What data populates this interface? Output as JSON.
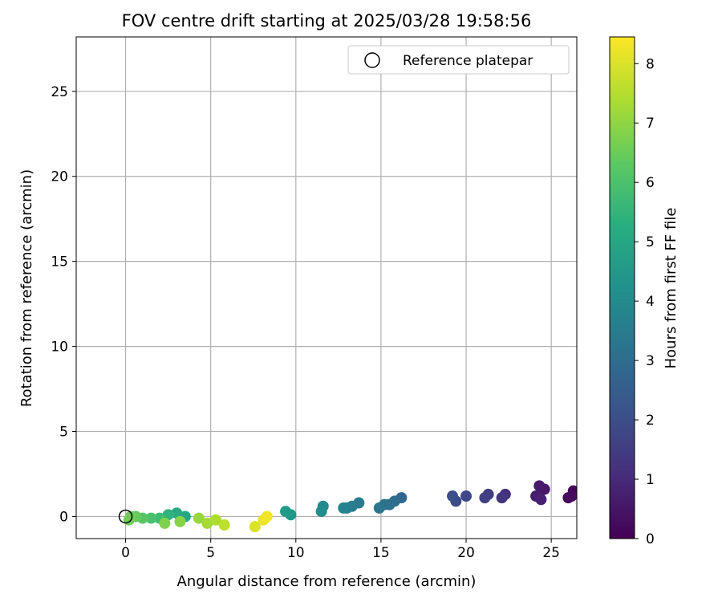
{
  "chart_data": {
    "type": "scatter",
    "title": "FOV centre drift starting at 2025/03/28 19:58:56",
    "xlabel": "Angular distance from reference (arcmin)",
    "ylabel": "Rotation from reference (arcmin)",
    "xlim": [
      -2.9,
      26.5
    ],
    "ylim": [
      -1.3,
      28.2
    ],
    "xticks": [
      0,
      5,
      10,
      15,
      20,
      25
    ],
    "yticks": [
      0,
      5,
      10,
      15,
      20,
      25
    ],
    "grid": true,
    "legend": {
      "position": "upper-right",
      "entries": [
        "Reference platepar"
      ]
    },
    "reference_point": {
      "x": 0,
      "y": 0,
      "label": "Reference platepar"
    },
    "colorbar": {
      "label": "Hours from first FF file",
      "range": [
        0,
        8.45
      ],
      "ticks": [
        0,
        1,
        2,
        3,
        4,
        5,
        6,
        7,
        8
      ],
      "colormap": "viridis"
    },
    "series": [
      {
        "points": [
          [
            26.3,
            1.5,
            0.1
          ],
          [
            26.0,
            1.1,
            0.2
          ],
          [
            26.2,
            1.2,
            0.25
          ],
          [
            24.6,
            1.6,
            0.5
          ],
          [
            24.3,
            1.8,
            0.6
          ],
          [
            24.1,
            1.2,
            0.7
          ],
          [
            24.4,
            1.0,
            0.8
          ],
          [
            22.3,
            1.3,
            1.2
          ],
          [
            22.1,
            1.1,
            1.3
          ],
          [
            21.3,
            1.3,
            1.5
          ],
          [
            21.1,
            1.1,
            1.6
          ],
          [
            20.0,
            1.2,
            1.8
          ],
          [
            19.4,
            0.9,
            1.9
          ],
          [
            19.2,
            1.2,
            2.0
          ],
          [
            16.2,
            1.1,
            2.8
          ],
          [
            15.8,
            0.9,
            3.0
          ],
          [
            15.5,
            0.7,
            3.1
          ],
          [
            15.2,
            0.7,
            3.2
          ],
          [
            14.9,
            0.5,
            3.3
          ],
          [
            13.7,
            0.8,
            3.5
          ],
          [
            13.3,
            0.6,
            3.6
          ],
          [
            13.0,
            0.5,
            3.7
          ],
          [
            12.8,
            0.5,
            3.8
          ],
          [
            11.6,
            0.6,
            4.0
          ],
          [
            11.5,
            0.3,
            4.1
          ],
          [
            9.7,
            0.1,
            4.5
          ],
          [
            9.4,
            0.3,
            4.6
          ],
          [
            3.5,
            0.0,
            5.0
          ],
          [
            3.0,
            0.2,
            5.2
          ],
          [
            2.5,
            0.1,
            5.4
          ],
          [
            2.0,
            -0.1,
            5.8
          ],
          [
            1.5,
            -0.1,
            6.0
          ],
          [
            1.0,
            -0.1,
            6.2
          ],
          [
            0.6,
            0.0,
            6.4
          ],
          [
            0.3,
            0.0,
            6.5
          ],
          [
            0.2,
            -0.2,
            6.6
          ],
          [
            2.3,
            -0.4,
            6.8
          ],
          [
            3.2,
            -0.3,
            6.9
          ],
          [
            4.3,
            -0.1,
            7.1
          ],
          [
            4.8,
            -0.4,
            7.3
          ],
          [
            5.3,
            -0.2,
            7.4
          ],
          [
            5.8,
            -0.5,
            7.6
          ],
          [
            7.6,
            -0.6,
            8.0
          ],
          [
            8.1,
            -0.2,
            8.2
          ],
          [
            8.3,
            0.0,
            8.3
          ]
        ]
      }
    ]
  },
  "colors": {
    "reference_marker": "#000000",
    "grid": "#b0b0b0",
    "axes": "#000000"
  }
}
